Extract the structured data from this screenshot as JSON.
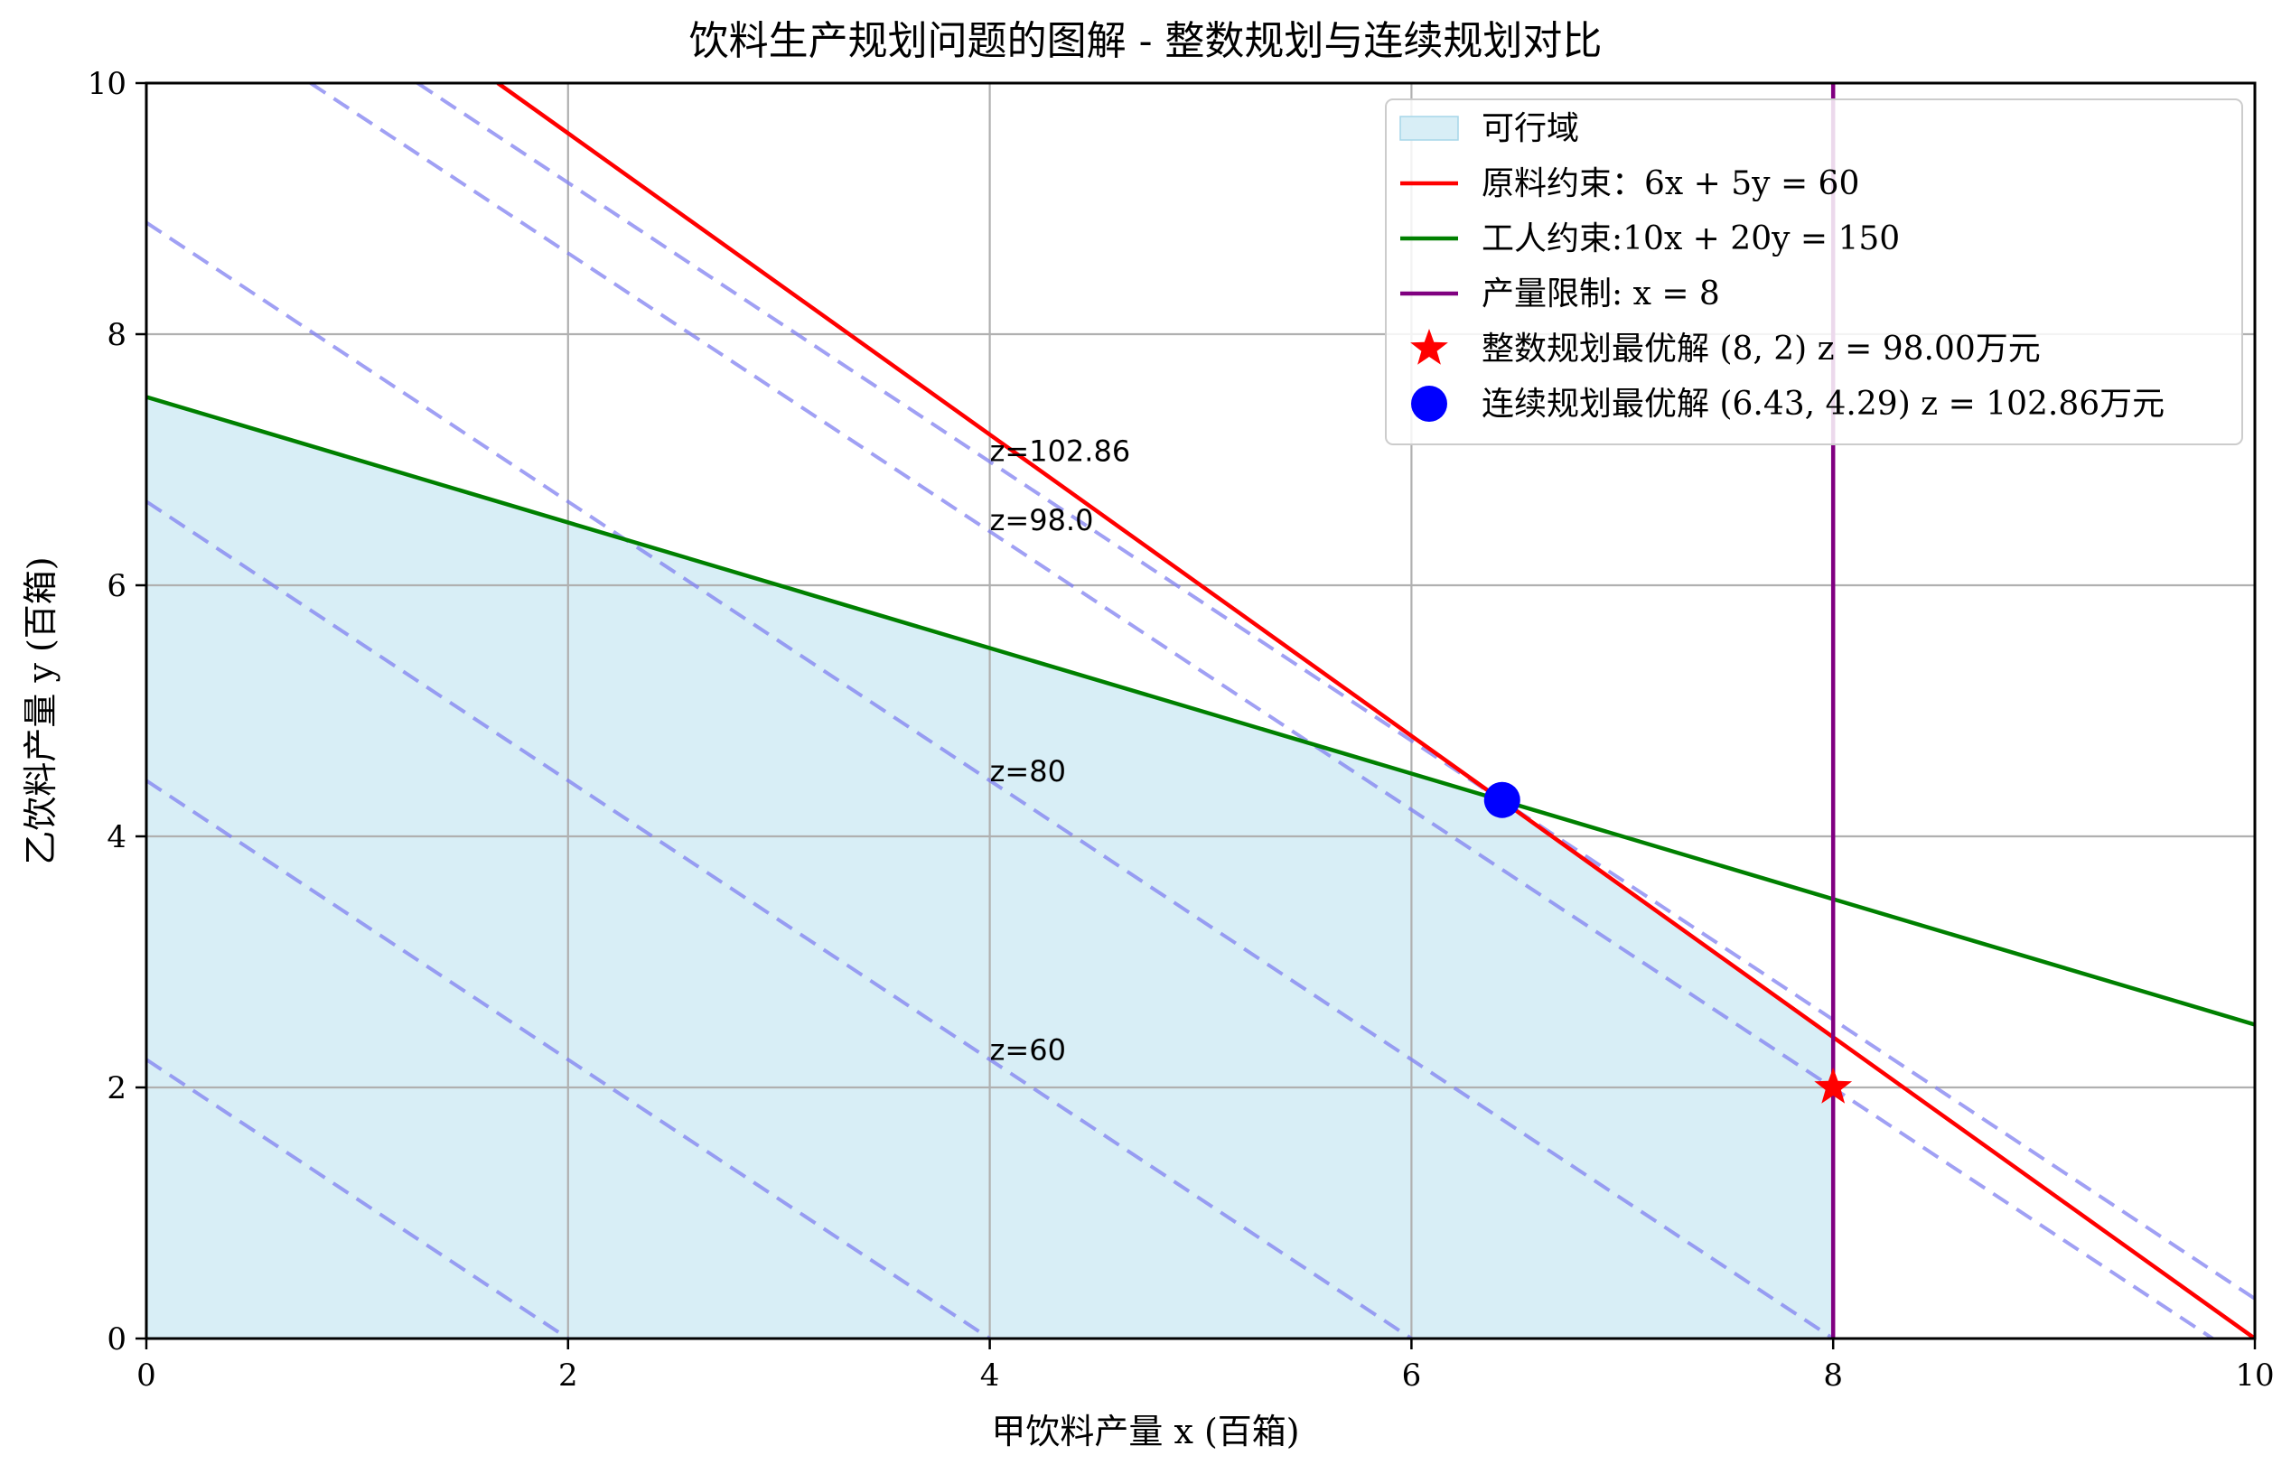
{
  "chart_data": {
    "type": "line",
    "title": "饮料生产规划问题的图解 - 整数规划与连续规划对比",
    "xlabel": "甲饮料产量 x (百箱)",
    "ylabel": "乙饮料产量 y (百箱)",
    "xlim": [
      0,
      10
    ],
    "ylim": [
      0,
      10
    ],
    "x_ticks": [
      "0",
      "2",
      "4",
      "6",
      "8",
      "10"
    ],
    "y_ticks": [
      "0",
      "2",
      "4",
      "6",
      "8",
      "10"
    ],
    "x_tick_values": [
      0,
      2,
      4,
      6,
      8,
      10
    ],
    "y_tick_values": [
      0,
      2,
      4,
      6,
      8,
      10
    ],
    "grid": true,
    "legend_position": "top-right",
    "feasible_region": {
      "label": "可行域",
      "color": "#d8eef6",
      "vertices": [
        [
          0,
          0
        ],
        [
          0,
          7.5
        ],
        [
          6.43,
          4.29
        ],
        [
          8,
          2.4
        ],
        [
          8,
          0
        ]
      ]
    },
    "constraints": [
      {
        "label": "原料约束：6x + 5y = 60",
        "color": "#ff0000",
        "points": [
          [
            1.667,
            10
          ],
          [
            10,
            0
          ]
        ]
      },
      {
        "label": "工人约束:10x + 20y = 150",
        "color": "#008000",
        "points": [
          [
            0,
            7.5
          ],
          [
            10,
            2.5
          ]
        ]
      },
      {
        "label": "产量限制: x = 8",
        "color": "#800080",
        "points": [
          [
            8,
            0
          ],
          [
            8,
            10
          ]
        ]
      }
    ],
    "objective_lines": {
      "color": "#8080f0",
      "series": [
        {
          "z": 20,
          "points": [
            [
              0,
              2.222
            ],
            [
              2,
              0
            ]
          ]
        },
        {
          "z": 40,
          "points": [
            [
              0,
              4.444
            ],
            [
              4,
              0
            ]
          ]
        },
        {
          "z": 60,
          "points": [
            [
              0,
              6.667
            ],
            [
              6,
              0
            ]
          ]
        },
        {
          "z": 80,
          "points": [
            [
              0,
              8.889
            ],
            [
              8,
              0
            ]
          ]
        },
        {
          "z": 98,
          "points": [
            [
              0.778,
              10
            ],
            [
              9.8,
              0
            ]
          ]
        },
        {
          "z": 102.86,
          "points": [
            [
              1.286,
              10
            ],
            [
              10,
              0.317
            ]
          ]
        }
      ],
      "labels": [
        {
          "text": "z=60",
          "x": 4,
          "y": 2.22
        },
        {
          "text": "z=80",
          "x": 4,
          "y": 4.44
        },
        {
          "text": "z=98.0",
          "x": 4,
          "y": 6.44
        },
        {
          "text": "z=102.86",
          "x": 4,
          "y": 6.99
        }
      ]
    },
    "optimal_points": [
      {
        "label": "整数规划最优解 (8, 2) z = 98.00万元",
        "x": 8,
        "y": 2,
        "marker": "star",
        "color": "#ff0000"
      },
      {
        "label": "连续规划最优解 (6.43, 4.29) z = 102.86万元",
        "x": 6.43,
        "y": 4.29,
        "marker": "circle",
        "color": "#0000ff"
      }
    ]
  }
}
